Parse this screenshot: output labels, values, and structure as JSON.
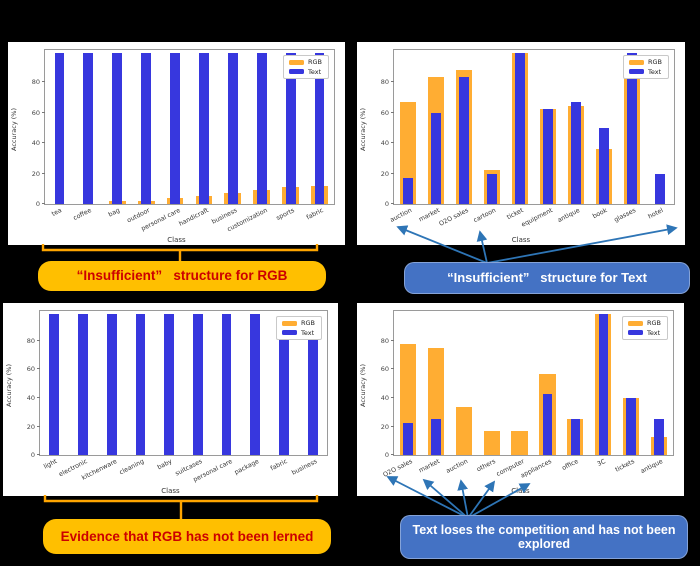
{
  "colors": {
    "page_bg": "#000000",
    "panel_bg": "#FFFFFF",
    "rgb_bar": "#FFAD33",
    "text_bar": "#3737DE",
    "gold_box": "#FFBF00",
    "red_text": "#CC0000",
    "blue_box": "#4472C4",
    "white_text": "#FFFFFF",
    "arrow": "#2E75B6",
    "bracket": "#FFA500"
  },
  "legend": {
    "rgb": "RGB",
    "text": "Text"
  },
  "chart_data": [
    {
      "id": "top-left",
      "type": "bar",
      "title": "",
      "xlabel": "Class",
      "ylabel": "Accuracy (%)",
      "ylim": [
        0,
        100
      ],
      "yticks": [
        0,
        20,
        40,
        60,
        80
      ],
      "legend": [
        "RGB",
        "Text"
      ],
      "legend_position": "upper right",
      "categories": [
        "tea",
        "coffee",
        "bag",
        "outdoor",
        "personal care",
        "handicraft",
        "business",
        "customization",
        "sports",
        "fabric"
      ],
      "series": [
        {
          "name": "RGB",
          "color": "#FFAD33",
          "values": [
            0,
            0,
            2,
            2,
            4,
            5,
            7,
            9,
            11,
            12
          ]
        },
        {
          "name": "Text",
          "color": "#3737DE",
          "values": [
            99,
            99,
            99,
            99,
            99,
            99,
            99,
            99,
            99,
            99
          ]
        }
      ]
    },
    {
      "id": "top-right",
      "type": "bar",
      "title": "",
      "xlabel": "Class",
      "ylabel": "Accuracy (%)",
      "ylim": [
        0,
        100
      ],
      "yticks": [
        0,
        20,
        40,
        60,
        80
      ],
      "legend": [
        "RGB",
        "Text"
      ],
      "legend_position": "upper right",
      "categories": [
        "auction",
        "market",
        "O2O sales",
        "cartoon",
        "ticket",
        "equipment",
        "antique",
        "book",
        "glasses",
        "hotel"
      ],
      "series": [
        {
          "name": "RGB",
          "color": "#FFAD33",
          "values": [
            67,
            83,
            88,
            22,
            99,
            62,
            64,
            36,
            85,
            0
          ]
        },
        {
          "name": "Text",
          "color": "#3737DE",
          "values": [
            17,
            60,
            83,
            20,
            99,
            62,
            67,
            50,
            99,
            20
          ]
        }
      ]
    },
    {
      "id": "bottom-left",
      "type": "bar",
      "title": "",
      "xlabel": "Class",
      "ylabel": "Accuracy (%)",
      "ylim": [
        0,
        100
      ],
      "yticks": [
        0,
        20,
        40,
        60,
        80
      ],
      "legend": [
        "RGB",
        "Text"
      ],
      "legend_position": "upper right",
      "categories": [
        "light",
        "electronic",
        "kitchenware",
        "cleaning",
        "baby",
        "suitcases",
        "personal care",
        "package",
        "fabric",
        "business"
      ],
      "series": [
        {
          "name": "RGB",
          "color": "#FFAD33",
          "values": [
            0,
            0,
            0,
            0,
            0,
            0,
            0,
            0,
            0,
            0
          ]
        },
        {
          "name": "Text",
          "color": "#3737DE",
          "values": [
            99,
            99,
            99,
            99,
            99,
            99,
            99,
            99,
            91,
            87
          ]
        }
      ]
    },
    {
      "id": "bottom-right",
      "type": "bar",
      "title": "",
      "xlabel": "Class",
      "ylabel": "Accuracy (%)",
      "ylim": [
        0,
        100
      ],
      "yticks": [
        0,
        20,
        40,
        60,
        80
      ],
      "legend": [
        "RGB",
        "Text"
      ],
      "legend_position": "upper right",
      "categories": [
        "O2O sales",
        "market",
        "auction",
        "others",
        "computer",
        "appliances",
        "office",
        "3C",
        "tickets",
        "antique"
      ],
      "series": [
        {
          "name": "RGB",
          "color": "#FFAD33",
          "values": [
            78,
            75,
            33.5,
            17,
            17,
            57,
            25,
            99,
            40,
            12.5
          ]
        },
        {
          "name": "Text",
          "color": "#3737DE",
          "values": [
            22.5,
            25,
            0,
            0,
            0,
            43,
            25,
            99,
            40,
            25
          ]
        }
      ]
    }
  ],
  "captions": {
    "tl": "“Insufficient”   structure for RGB",
    "tr": "“Insufficient”   structure for Text",
    "bl": "Evidence that RGB has not been lerned",
    "br": "Text loses the competition and has not been explored"
  }
}
